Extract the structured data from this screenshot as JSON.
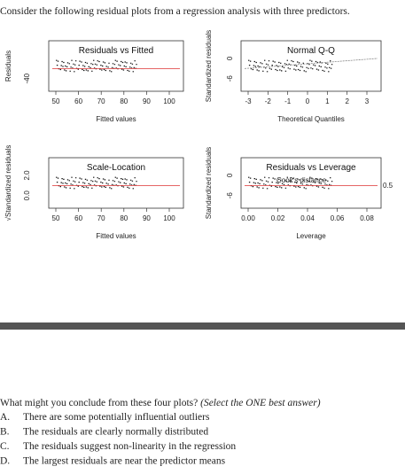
{
  "header": {
    "title": "Consider the following residual plots from a regression analysis with three predictors."
  },
  "plots": [
    {
      "title": "Residuals vs Fitted",
      "xlabel": "Fitted values",
      "ylabel": "Residuals",
      "xticks": [
        "50",
        "60",
        "70",
        "80",
        "90",
        "100"
      ],
      "yticks": [
        "-40"
      ]
    },
    {
      "title": "Normal Q-Q",
      "xlabel": "Theoretical Quantiles",
      "ylabel": "Standardized residuals",
      "xticks": [
        "-3",
        "-2",
        "-1",
        "0",
        "1",
        "2",
        "3"
      ],
      "yticks": [
        "-6",
        "0"
      ]
    },
    {
      "title": "Scale-Location",
      "xlabel": "Fitted values",
      "ylabel": "√Standardized residuals",
      "xticks": [
        "50",
        "60",
        "70",
        "80",
        "90",
        "100"
      ],
      "yticks": [
        "0.0",
        "2.0"
      ]
    },
    {
      "title": "Residuals vs Leverage",
      "xlabel": "Leverage",
      "ylabel": "Standardized residuals",
      "xticks": [
        "0.00",
        "0.02",
        "0.04",
        "0.06",
        "0.08"
      ],
      "yticks": [
        "-6",
        "0"
      ],
      "annotations": [
        "Cook's distance",
        "0.5"
      ]
    }
  ],
  "question": {
    "text": "What might you conclude from these four plots?",
    "note": "(Select the ONE best answer)"
  },
  "options": [
    {
      "letter": "A.",
      "text": "There are some potentially influential outliers"
    },
    {
      "letter": "B.",
      "text": "The residuals are clearly normally distributed"
    },
    {
      "letter": "C.",
      "text": "The residuals suggest non-linearity in the regression"
    },
    {
      "letter": "D.",
      "text": "The largest residuals are near the predictor means"
    }
  ]
}
